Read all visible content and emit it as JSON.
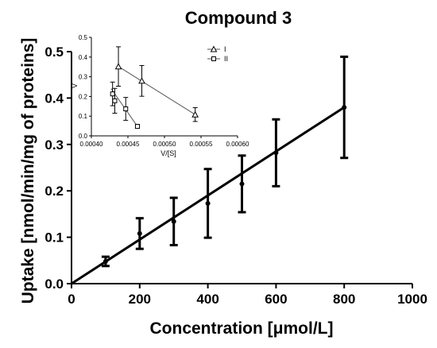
{
  "chart_data": [
    {
      "type": "scatter",
      "title": "Compound 3",
      "xlabel": "Concentration [μmol/L]",
      "ylabel": "Uptake [nmol/min/mg of proteins]",
      "xlim": [
        0,
        1000
      ],
      "ylim": [
        0,
        0.5
      ],
      "x_ticks": [
        0,
        200,
        400,
        600,
        800,
        1000
      ],
      "y_ticks": [
        0.0,
        0.1,
        0.2,
        0.3,
        0.4,
        0.5
      ],
      "x_tick_labels": [
        "0",
        "200",
        "400",
        "600",
        "800",
        "1000"
      ],
      "y_tick_labels": [
        "0.0",
        "0.1",
        "0.2",
        "0.3",
        "0.4",
        "0.5"
      ],
      "grid": false,
      "series": [
        {
          "x": [
            100,
            200,
            300,
            400,
            500,
            600,
            800
          ],
          "y": [
            0.048,
            0.108,
            0.134,
            0.173,
            0.215,
            0.282,
            0.38
          ],
          "error": [
            0.01,
            0.033,
            0.051,
            0.074,
            0.061,
            0.072,
            0.109
          ]
        }
      ],
      "fit_line": {
        "x": [
          0,
          800
        ],
        "y": [
          0,
          0.38
        ]
      }
    },
    {
      "type": "scatter",
      "xlabel": "V/[S]",
      "ylabel": "V",
      "xlim": [
        0.0004,
        0.0006
      ],
      "ylim": [
        0,
        0.5
      ],
      "x_ticks": [
        0.0004,
        0.00045,
        0.0005,
        0.00055,
        0.0006
      ],
      "y_ticks": [
        0.0,
        0.1,
        0.2,
        0.3,
        0.4,
        0.5
      ],
      "x_tick_labels": [
        "0.00040",
        "0.00045",
        "0.00050",
        "0.00055",
        "0.00060"
      ],
      "y_tick_labels": [
        "0.0",
        "0.1",
        "0.2",
        "0.3",
        "0.4",
        "0.5"
      ],
      "legend_position": "top-right",
      "series": [
        {
          "name": "I",
          "marker": "triangle",
          "x": [
            0.000437,
            0.000469,
            0.000542
          ],
          "y": [
            0.352,
            0.279,
            0.108
          ],
          "error": [
            0.1,
            0.078,
            0.035
          ],
          "line": {
            "x": [
              0.000437,
              0.000542
            ],
            "y": [
              0.352,
              0.108
            ]
          }
        },
        {
          "name": "II",
          "marker": "square",
          "x": [
            0.000429,
            0.000432,
            0.000447,
            0.000463
          ],
          "y": [
            0.213,
            0.178,
            0.137,
            0.048
          ],
          "error": [
            0.06,
            0.063,
            0.058,
            0.01
          ],
          "line": {
            "x": [
              0.000427,
              0.000463
            ],
            "y": [
              0.24,
              0.048
            ]
          }
        }
      ]
    }
  ]
}
